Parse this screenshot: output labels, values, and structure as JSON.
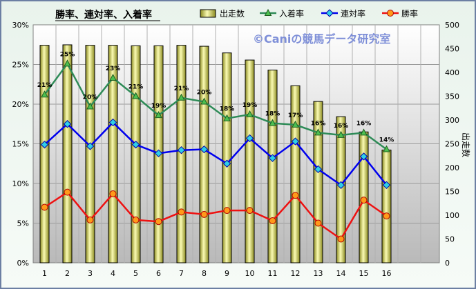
{
  "chart_data": {
    "type": "bar+line",
    "title": "勝率、連対率、入着率",
    "watermark": "©Caniの競馬データ研究室",
    "y2label": "出走数",
    "categories": [
      "1",
      "2",
      "3",
      "4",
      "5",
      "6",
      "7",
      "8",
      "9",
      "10",
      "11",
      "12",
      "13",
      "14",
      "15",
      "16"
    ],
    "left_axis": {
      "range": [
        0,
        30
      ],
      "ticks": [
        "0%",
        "5%",
        "10%",
        "15%",
        "20%",
        "25%",
        "30%"
      ]
    },
    "right_axis": {
      "range": [
        0,
        500
      ],
      "ticks": [
        "0",
        "50",
        "100",
        "150",
        "200",
        "250",
        "300",
        "350",
        "400",
        "450",
        "500"
      ]
    },
    "grid": true,
    "legend_position": "top",
    "series": [
      {
        "name": "出走数",
        "kind": "bar",
        "axis": "right",
        "values": [
          457,
          458,
          457,
          457,
          456,
          456,
          457,
          455,
          441,
          426,
          405,
          372,
          339,
          307,
          275,
          237
        ],
        "color": "#f2f28a"
      },
      {
        "name": "入着率",
        "kind": "line",
        "axis": "left",
        "values": [
          21.2,
          25.1,
          19.7,
          23.3,
          21.0,
          18.6,
          20.8,
          20.3,
          18.2,
          18.7,
          17.6,
          17.4,
          16.4,
          16.1,
          16.4,
          14.3
        ],
        "data_labels": [
          "21%",
          "25%",
          "20%",
          "23%",
          "21%",
          "19%",
          "21%",
          "20%",
          "18%",
          "19%",
          "18%",
          "17%",
          "16%",
          "16%",
          "16%",
          "14%"
        ],
        "color": "#2e8b57",
        "marker": "triangle"
      },
      {
        "name": "連対率",
        "kind": "line",
        "axis": "left",
        "values": [
          14.9,
          17.5,
          14.7,
          17.7,
          14.9,
          13.8,
          14.2,
          14.3,
          12.5,
          15.7,
          13.2,
          15.3,
          11.8,
          9.8,
          13.4,
          9.8
        ],
        "color": "#0000ee",
        "marker": "diamond"
      },
      {
        "name": "勝率",
        "kind": "line",
        "axis": "left",
        "values": [
          7.0,
          8.9,
          5.4,
          8.7,
          5.4,
          5.2,
          6.4,
          6.1,
          6.6,
          6.6,
          5.3,
          8.5,
          5.0,
          3.0,
          7.9,
          5.9
        ],
        "color": "#ee1111",
        "marker": "circle"
      }
    ]
  }
}
